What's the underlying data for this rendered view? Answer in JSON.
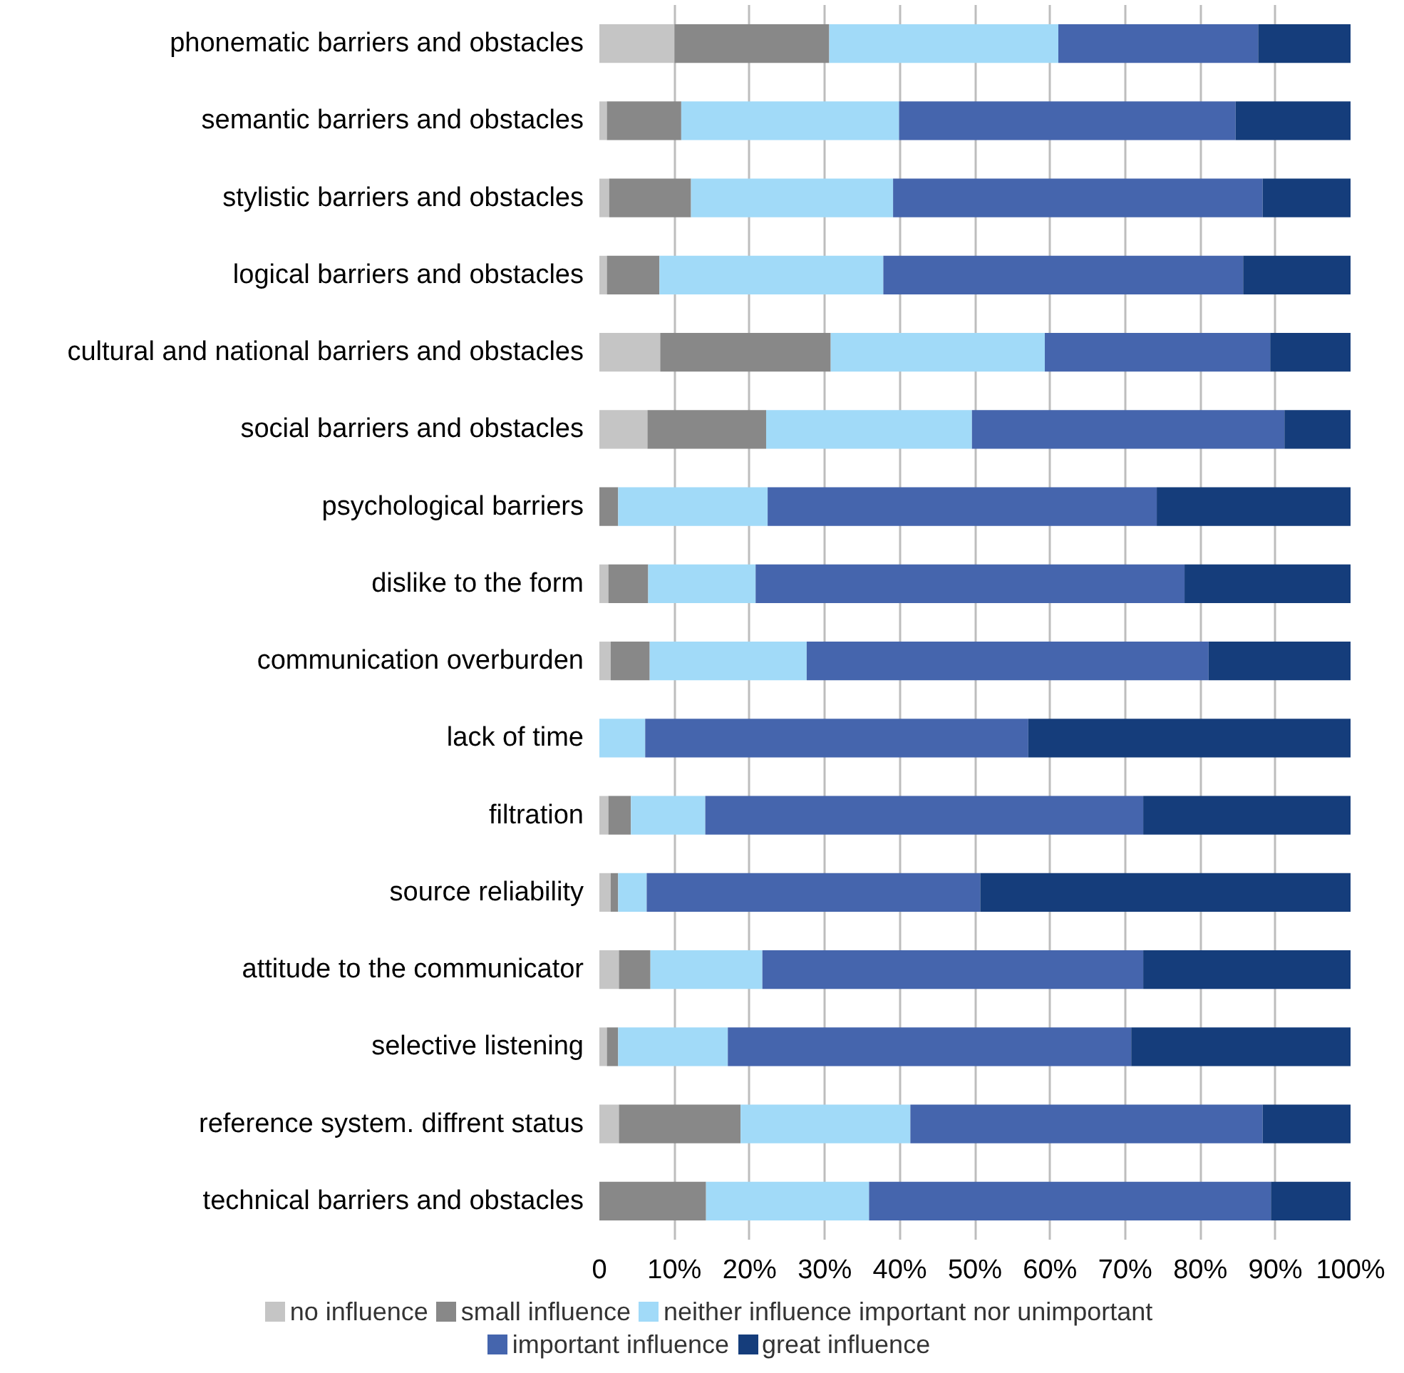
{
  "chart_data": {
    "type": "bar",
    "orientation": "horizontal",
    "stacked": true,
    "categories": [
      "phonematic barriers and obstacles",
      "semantic barriers and obstacles",
      "stylistic barriers and obstacles",
      "logical barriers and obstacles",
      "cultural and national barriers and obstacles",
      "social barriers and obstacles",
      "psychological barriers",
      "dislike to the form",
      "communication overburden",
      "lack of time",
      "filtration",
      "source reliability",
      "attitude to the communicator",
      "selective listening",
      "reference system. diffrent status",
      "technical barriers and obstacles"
    ],
    "series": [
      {
        "name": "no influence",
        "color": "#c5c5c5",
        "values": [
          10,
          1,
          1.3,
          1,
          8.1,
          6.4,
          0,
          1.2,
          1.5,
          0,
          1.2,
          1.5,
          2.6,
          1,
          2.6,
          0
        ]
      },
      {
        "name": "small influence",
        "color": "#888888",
        "values": [
          20.6,
          9.9,
          10.9,
          7,
          22.7,
          15.8,
          2.5,
          5.3,
          5.2,
          0,
          3,
          1,
          4.2,
          1.5,
          16.2,
          14.2
        ]
      },
      {
        "name": "neither influence important nor unimportant",
        "color": "#a1daf8",
        "values": [
          30.5,
          29,
          26.9,
          29.8,
          28.5,
          27.4,
          19.9,
          14.3,
          20.9,
          6.1,
          9.9,
          3.8,
          14.9,
          14.6,
          22.6,
          21.7
        ]
      },
      {
        "name": "important influence",
        "color": "#4565ad",
        "values": [
          26.6,
          44.8,
          49.2,
          47.9,
          30,
          41.6,
          51.8,
          57.1,
          53.5,
          51,
          58.3,
          44.4,
          50.7,
          53.7,
          46.9,
          53.5
        ]
      },
      {
        "name": "great influence",
        "color": "#153d7b",
        "values": [
          12.3,
          15.3,
          11.7,
          14.3,
          10.7,
          8.8,
          25.8,
          22.1,
          18.9,
          42.9,
          27.6,
          49.3,
          27.6,
          29.2,
          11.7,
          10.6
        ]
      }
    ],
    "xlim": [
      0,
      100
    ],
    "xticks": [
      {
        "value": 0,
        "label": "0"
      },
      {
        "value": 10,
        "label": "10%"
      },
      {
        "value": 20,
        "label": "20%"
      },
      {
        "value": 30,
        "label": "30%"
      },
      {
        "value": 40,
        "label": "40%"
      },
      {
        "value": 50,
        "label": "50%"
      },
      {
        "value": 60,
        "label": "60%"
      },
      {
        "value": 70,
        "label": "70%"
      },
      {
        "value": 80,
        "label": "80%"
      },
      {
        "value": 90,
        "label": "90%"
      },
      {
        "value": 100,
        "label": "100%"
      }
    ],
    "grid": "x",
    "legend": "bottom"
  }
}
